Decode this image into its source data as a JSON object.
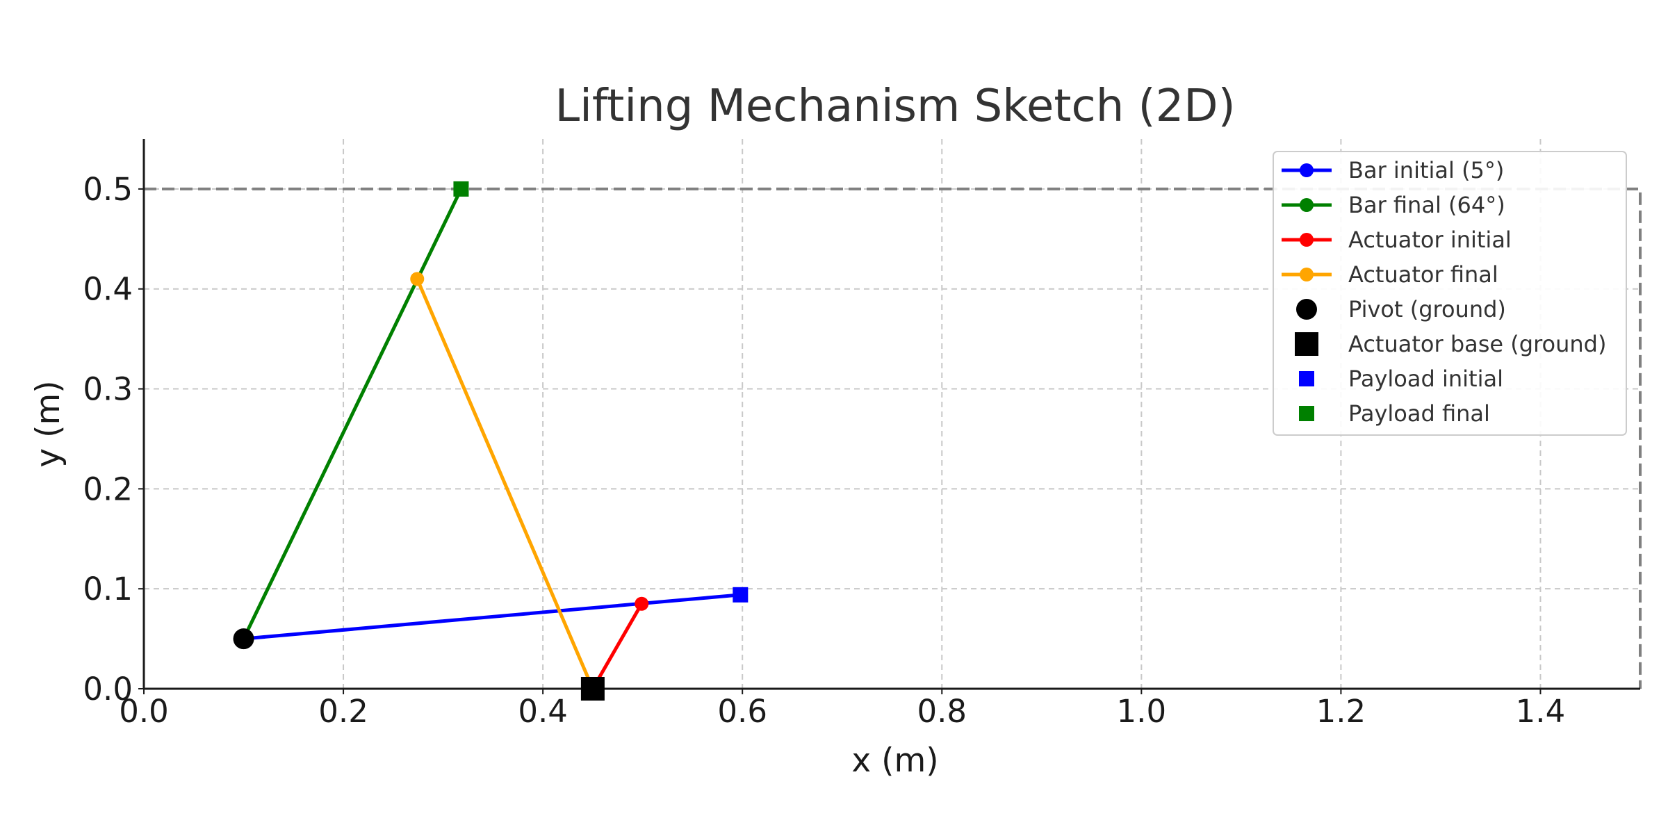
{
  "chart_data": {
    "type": "line",
    "title": "Lifting Mechanism Sketch (2D)",
    "xlabel": "x (m)",
    "ylabel": "y (m)",
    "xlim": [
      0.0,
      1.5
    ],
    "ylim": [
      0.0,
      0.55
    ],
    "xticks": [
      0.0,
      0.2,
      0.4,
      0.6,
      0.8,
      1.0,
      1.2,
      1.4
    ],
    "xtick_labels": [
      "0.0",
      "0.2",
      "0.4",
      "0.6",
      "0.8",
      "1.0",
      "1.2",
      "1.4"
    ],
    "yticks": [
      0.0,
      0.1,
      0.2,
      0.3,
      0.4,
      0.5
    ],
    "ytick_labels": [
      "0.0",
      "0.1",
      "0.2",
      "0.3",
      "0.4",
      "0.5"
    ],
    "grid": true,
    "legend_position": "top-right",
    "series": [
      {
        "name": "Bar initial (5°)",
        "kind": "line",
        "color": "#0000ff",
        "x": [
          0.1,
          0.598
        ],
        "y": [
          0.05,
          0.094
        ]
      },
      {
        "name": "Bar final (64°)",
        "kind": "line",
        "color": "#008000",
        "x": [
          0.1,
          0.318
        ],
        "y": [
          0.05,
          0.5
        ]
      },
      {
        "name": "Actuator initial",
        "kind": "line",
        "color": "#ff0000",
        "x": [
          0.45,
          0.499
        ],
        "y": [
          0.0,
          0.085
        ]
      },
      {
        "name": "Actuator final",
        "kind": "line",
        "color": "#ffa500",
        "x": [
          0.45,
          0.274
        ],
        "y": [
          0.0,
          0.41
        ]
      },
      {
        "name": "Pivot (ground)",
        "kind": "circle",
        "color": "#000000",
        "x": [
          0.1
        ],
        "y": [
          0.05
        ]
      },
      {
        "name": "Actuator base (ground)",
        "kind": "square",
        "color": "#000000",
        "x": [
          0.45
        ],
        "y": [
          0.0
        ]
      },
      {
        "name": "Payload initial",
        "kind": "square",
        "color": "#0000ff",
        "x": [
          0.598
        ],
        "y": [
          0.094
        ]
      },
      {
        "name": "Payload final",
        "kind": "square",
        "color": "#008000",
        "x": [
          0.318
        ],
        "y": [
          0.5
        ]
      }
    ],
    "reference_box": {
      "color": "#808080",
      "x": [
        0.0,
        1.5
      ],
      "y": [
        0.0,
        0.5
      ]
    }
  }
}
